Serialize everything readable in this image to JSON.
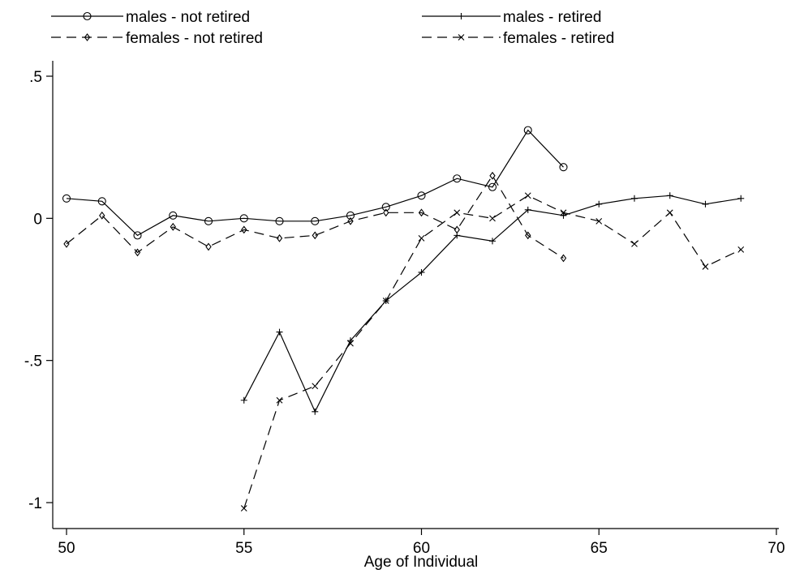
{
  "chart_data": {
    "type": "line",
    "title": "",
    "xlabel": "Age of Individual",
    "ylabel": "",
    "xlim": [
      50,
      70
    ],
    "ylim": [
      -1,
      0.5
    ],
    "xticks": [
      50,
      55,
      60,
      65,
      70
    ],
    "xtick_labels": [
      "50",
      "55",
      "60",
      "65",
      "70"
    ],
    "yticks": [
      0.5,
      0,
      -0.5,
      -1
    ],
    "ytick_labels": [
      ".5",
      "0",
      "-.5",
      "-1"
    ],
    "grid": false,
    "legend_position": "top",
    "series": [
      {
        "name": "males - not retired",
        "line": "solid",
        "marker": "circle",
        "x": [
          50,
          51,
          52,
          53,
          54,
          55,
          56,
          57,
          58,
          59,
          60,
          61,
          62,
          63,
          64
        ],
        "y": [
          0.07,
          0.06,
          -0.06,
          0.01,
          -0.01,
          0.0,
          -0.01,
          -0.01,
          0.01,
          0.04,
          0.08,
          0.14,
          0.11,
          0.31,
          0.18
        ]
      },
      {
        "name": "males - retired",
        "line": "solid",
        "marker": "plus",
        "x": [
          55,
          56,
          57,
          58,
          59,
          60,
          61,
          62,
          63,
          64,
          65,
          66,
          67,
          68,
          69
        ],
        "y": [
          -0.64,
          -0.4,
          -0.68,
          -0.43,
          -0.29,
          -0.19,
          -0.06,
          -0.08,
          0.03,
          0.01,
          0.05,
          0.07,
          0.08,
          0.05,
          0.07
        ]
      },
      {
        "name": "females - not retired",
        "line": "dashed",
        "marker": "diamond",
        "x": [
          50,
          51,
          52,
          53,
          54,
          55,
          56,
          57,
          58,
          59,
          60,
          61,
          62,
          63,
          64
        ],
        "y": [
          -0.09,
          0.01,
          -0.12,
          -0.03,
          -0.1,
          -0.04,
          -0.07,
          -0.06,
          -0.01,
          0.02,
          0.02,
          -0.04,
          0.15,
          -0.06,
          -0.14
        ]
      },
      {
        "name": "females - retired",
        "line": "dashed",
        "marker": "x",
        "x": [
          55,
          56,
          57,
          58,
          59,
          60,
          61,
          62,
          63,
          64,
          65,
          66,
          67,
          68,
          69
        ],
        "y": [
          -1.02,
          -0.64,
          -0.59,
          -0.44,
          -0.29,
          -0.07,
          0.02,
          0.0,
          0.08,
          0.02,
          -0.01,
          -0.09,
          0.02,
          -0.17,
          -0.11
        ]
      }
    ]
  }
}
